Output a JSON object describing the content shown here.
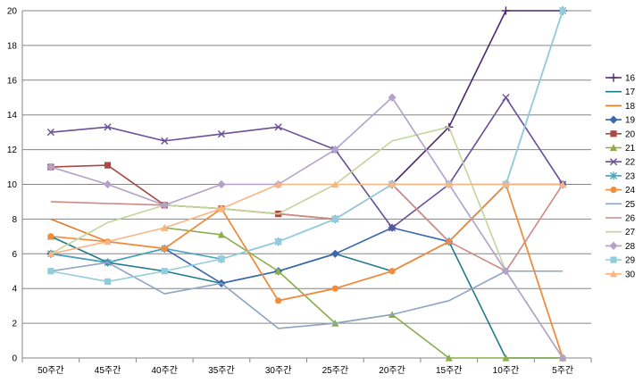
{
  "chart_data": {
    "type": "line",
    "title": "",
    "xlabel": "",
    "ylabel": "",
    "ylim": [
      0,
      20
    ],
    "yticks": [
      0,
      2,
      4,
      6,
      8,
      10,
      12,
      14,
      16,
      18,
      20
    ],
    "grid": true,
    "legend_position": "right",
    "categories": [
      "50주간",
      "45주간",
      "40주간",
      "35주간",
      "30주간",
      "25주간",
      "20주간",
      "15주간",
      "10주간",
      "5주간"
    ],
    "series": [
      {
        "name": "16",
        "color": "#4b2a6e",
        "marker": "plus",
        "values": [
          null,
          null,
          null,
          null,
          null,
          null,
          10,
          13.3,
          20,
          20
        ]
      },
      {
        "name": "17",
        "color": "#207a8c",
        "marker": "none",
        "values": [
          7,
          5.5,
          5,
          4.3,
          5,
          6,
          5,
          6.7,
          0,
          0
        ]
      },
      {
        "name": "18",
        "color": "#e87722",
        "marker": "none",
        "values": [
          8,
          6.7,
          6.3,
          8.6,
          3.3,
          4,
          5,
          6.7,
          10,
          0
        ]
      },
      {
        "name": "19",
        "color": "#3a67ad",
        "marker": "diamond",
        "values": [
          6,
          5.5,
          6.3,
          4.3,
          5,
          6,
          7.5,
          6.7,
          10,
          10
        ]
      },
      {
        "name": "20",
        "color": "#a84a46",
        "marker": "square",
        "values": [
          11,
          11.1,
          8.8,
          8.6,
          8.3,
          8,
          null,
          null,
          null,
          null
        ]
      },
      {
        "name": "21",
        "color": "#8cad4a",
        "marker": "triangle",
        "values": [
          7,
          null,
          7.5,
          7.1,
          5,
          2,
          2.5,
          0,
          0,
          0
        ]
      },
      {
        "name": "22",
        "color": "#6b4f96",
        "marker": "x",
        "values": [
          13,
          13.3,
          12.5,
          12.9,
          13.3,
          12,
          7.5,
          10,
          15,
          10
        ]
      },
      {
        "name": "23",
        "color": "#4aa3bd",
        "marker": "star",
        "values": [
          6,
          5.5,
          6.3,
          5.7,
          6.7,
          8,
          10,
          6.7,
          10,
          20
        ]
      },
      {
        "name": "24",
        "color": "#f08c3c",
        "marker": "circle",
        "values": [
          7,
          6.7,
          6.3,
          8.6,
          3.3,
          4,
          5,
          6.7,
          10,
          0
        ]
      },
      {
        "name": "25",
        "color": "#8fa4c4",
        "marker": "none",
        "values": [
          5,
          5.5,
          3.7,
          4.3,
          1.7,
          2,
          2.5,
          3.3,
          5,
          5
        ]
      },
      {
        "name": "26",
        "color": "#cf8a86",
        "marker": "none",
        "values": [
          9,
          8.9,
          8.8,
          8.6,
          8.3,
          8,
          10,
          6.7,
          5,
          10
        ]
      },
      {
        "name": "27",
        "color": "#c2d69b",
        "marker": "none",
        "values": [
          6,
          7.8,
          8.8,
          8.6,
          8.3,
          10,
          12.5,
          13.3,
          5,
          0
        ]
      },
      {
        "name": "28",
        "color": "#b3a2c7",
        "marker": "diamond",
        "values": [
          11,
          10,
          8.8,
          10,
          10,
          12,
          15,
          10,
          5,
          0
        ]
      },
      {
        "name": "29",
        "color": "#93cddd",
        "marker": "square",
        "values": [
          5,
          4.4,
          5,
          5.7,
          6.7,
          8,
          10,
          10,
          10,
          20
        ]
      },
      {
        "name": "30",
        "color": "#fab583",
        "marker": "triangle",
        "values": [
          6,
          6.7,
          7.5,
          8.6,
          10,
          10,
          10,
          10,
          10,
          10
        ]
      }
    ]
  }
}
